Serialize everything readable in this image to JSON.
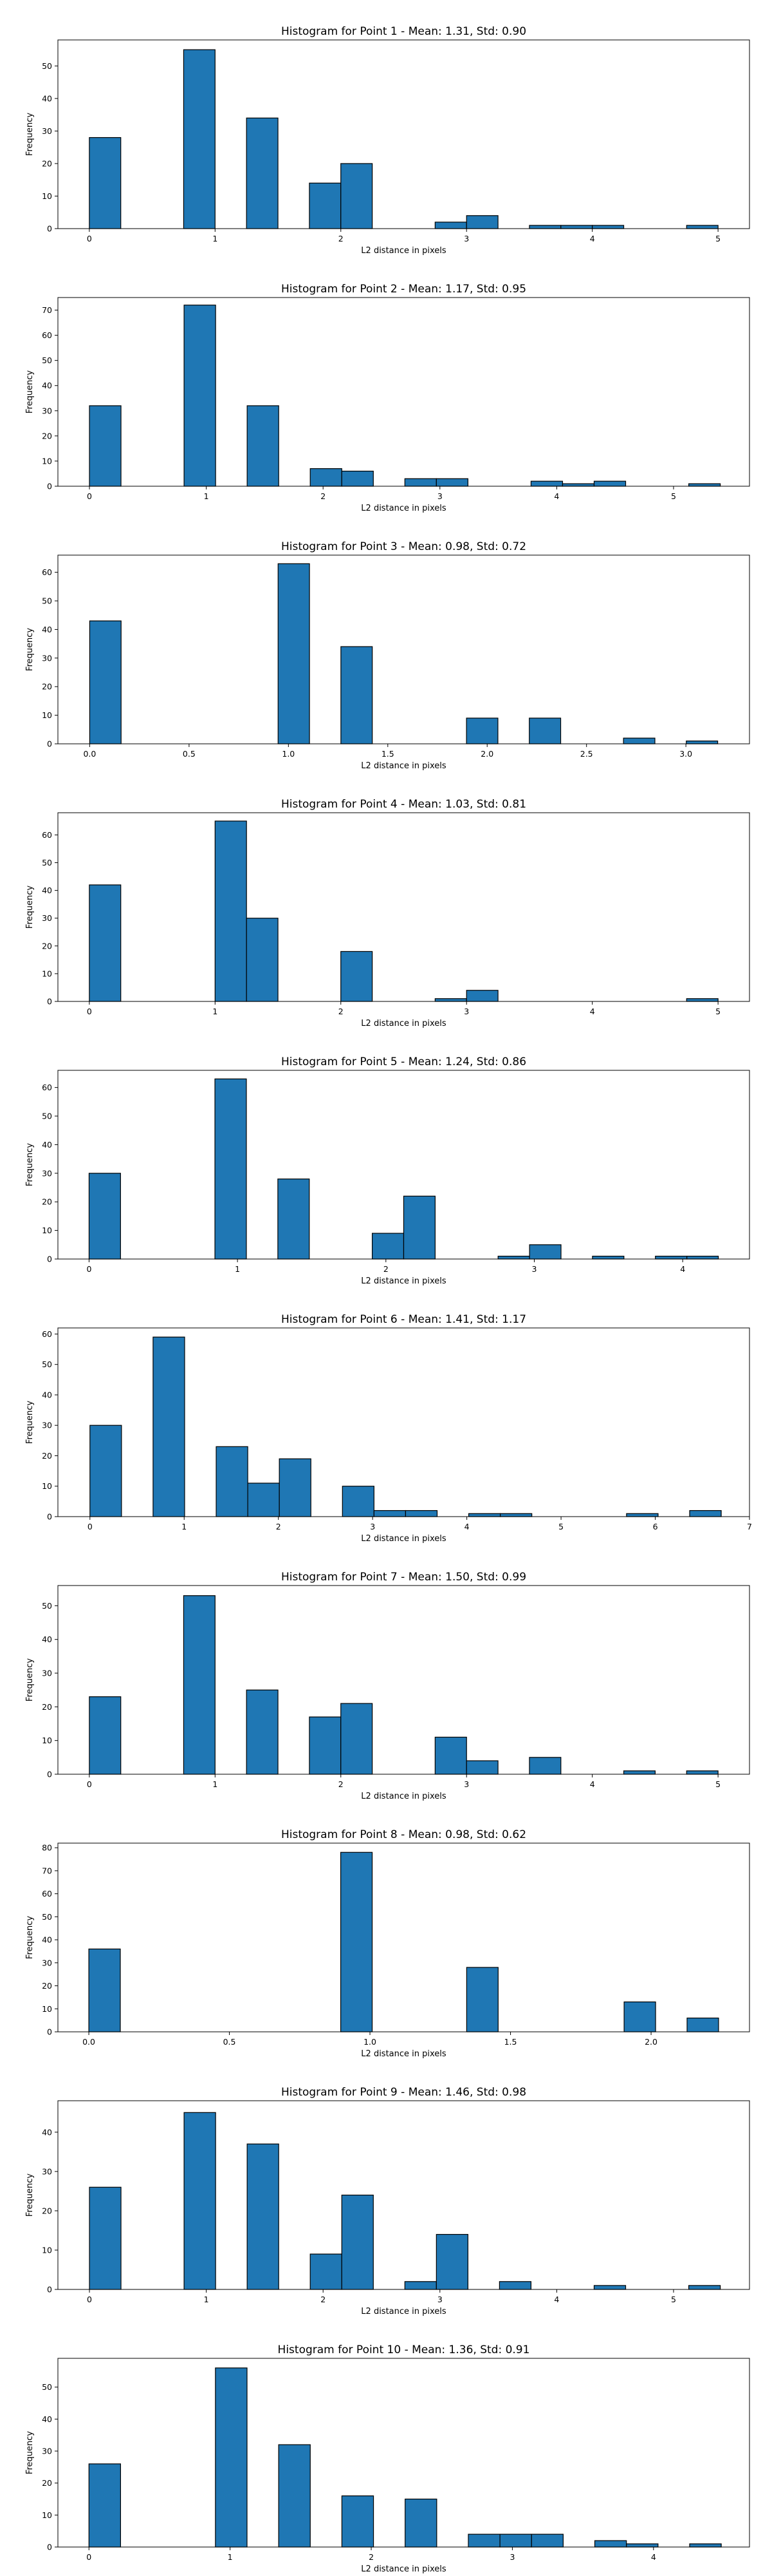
{
  "chart_data": [
    {
      "type": "bar",
      "title": "Histogram for Point 1 - Mean: 1.31, Std: 0.90",
      "xlabel": "L2 distance in pixels",
      "ylabel": "Frequency",
      "xlim": [
        -0.25,
        5.25
      ],
      "ylim": [
        0,
        58
      ],
      "xticks": [
        0,
        1,
        2,
        3,
        4,
        5
      ],
      "xtick_labels": [
        "0",
        "1",
        "2",
        "3",
        "4",
        "5"
      ],
      "yticks": [
        0,
        10,
        20,
        30,
        40,
        50
      ],
      "bin_width": 0.25,
      "bins": [
        {
          "x": 0.0,
          "count": 28
        },
        {
          "x": 0.75,
          "count": 55
        },
        {
          "x": 1.25,
          "count": 34
        },
        {
          "x": 1.75,
          "count": 14
        },
        {
          "x": 2.0,
          "count": 20
        },
        {
          "x": 2.75,
          "count": 2
        },
        {
          "x": 3.0,
          "count": 4
        },
        {
          "x": 3.5,
          "count": 1
        },
        {
          "x": 3.75,
          "count": 1
        },
        {
          "x": 4.0,
          "count": 1
        },
        {
          "x": 4.75,
          "count": 1
        }
      ]
    },
    {
      "type": "bar",
      "title": "Histogram for Point 2 - Mean: 1.17, Std: 0.95",
      "xlabel": "L2 distance in pixels",
      "ylabel": "Frequency",
      "xlim": [
        -0.27,
        5.65
      ],
      "ylim": [
        0,
        75
      ],
      "xticks": [
        0,
        1,
        2,
        3,
        4,
        5
      ],
      "xtick_labels": [
        "0",
        "1",
        "2",
        "3",
        "4",
        "5"
      ],
      "yticks": [
        0,
        10,
        20,
        30,
        40,
        50,
        60,
        70
      ],
      "bin_width": 0.27,
      "bins": [
        {
          "x": 0.0,
          "count": 32
        },
        {
          "x": 0.81,
          "count": 72
        },
        {
          "x": 1.35,
          "count": 32
        },
        {
          "x": 1.89,
          "count": 7
        },
        {
          "x": 2.16,
          "count": 6
        },
        {
          "x": 2.7,
          "count": 3
        },
        {
          "x": 2.97,
          "count": 3
        },
        {
          "x": 3.78,
          "count": 2
        },
        {
          "x": 4.05,
          "count": 1
        },
        {
          "x": 4.32,
          "count": 2
        },
        {
          "x": 5.13,
          "count": 1
        }
      ]
    },
    {
      "type": "bar",
      "title": "Histogram for Point 3 - Mean: 0.98, Std: 0.72",
      "xlabel": "L2 distance in pixels",
      "ylabel": "Frequency",
      "xlim": [
        -0.16,
        3.32
      ],
      "ylim": [
        0,
        66
      ],
      "xticks": [
        0.0,
        0.5,
        1.0,
        1.5,
        2.0,
        2.5,
        3.0
      ],
      "xtick_labels": [
        "0.0",
        "0.5",
        "1.0",
        "1.5",
        "2.0",
        "2.5",
        "3.0"
      ],
      "yticks": [
        0,
        10,
        20,
        30,
        40,
        50,
        60
      ],
      "bin_width": 0.158,
      "bins": [
        {
          "x": 0.0,
          "count": 43
        },
        {
          "x": 0.948,
          "count": 63
        },
        {
          "x": 1.264,
          "count": 34
        },
        {
          "x": 1.896,
          "count": 9
        },
        {
          "x": 2.212,
          "count": 9
        },
        {
          "x": 2.686,
          "count": 2
        },
        {
          "x": 3.002,
          "count": 1
        }
      ]
    },
    {
      "type": "bar",
      "title": "Histogram for Point 4 - Mean: 1.03, Std: 0.81",
      "xlabel": "L2 distance in pixels",
      "ylabel": "Frequency",
      "xlim": [
        -0.25,
        5.25
      ],
      "ylim": [
        0,
        68
      ],
      "xticks": [
        0,
        1,
        2,
        3,
        4,
        5
      ],
      "xtick_labels": [
        "0",
        "1",
        "2",
        "3",
        "4",
        "5"
      ],
      "yticks": [
        0,
        10,
        20,
        30,
        40,
        50,
        60
      ],
      "bin_width": 0.25,
      "bins": [
        {
          "x": 0.0,
          "count": 42
        },
        {
          "x": 1.0,
          "count": 65
        },
        {
          "x": 1.25,
          "count": 30
        },
        {
          "x": 2.0,
          "count": 18
        },
        {
          "x": 2.75,
          "count": 1
        },
        {
          "x": 3.0,
          "count": 4
        },
        {
          "x": 4.75,
          "count": 1
        }
      ]
    },
    {
      "type": "bar",
      "title": "Histogram for Point 5 - Mean: 1.24, Std: 0.86",
      "xlabel": "L2 distance in pixels",
      "ylabel": "Frequency",
      "xlim": [
        -0.21,
        4.45
      ],
      "ylim": [
        0,
        66
      ],
      "xticks": [
        0,
        1,
        2,
        3,
        4
      ],
      "xtick_labels": [
        "0",
        "1",
        "2",
        "3",
        "4"
      ],
      "yticks": [
        0,
        10,
        20,
        30,
        40,
        50,
        60
      ],
      "bin_width": 0.212,
      "bins": [
        {
          "x": 0.0,
          "count": 30
        },
        {
          "x": 0.848,
          "count": 63
        },
        {
          "x": 1.272,
          "count": 28
        },
        {
          "x": 1.908,
          "count": 9
        },
        {
          "x": 2.12,
          "count": 22
        },
        {
          "x": 2.756,
          "count": 1
        },
        {
          "x": 2.968,
          "count": 5
        },
        {
          "x": 3.392,
          "count": 1
        },
        {
          "x": 3.816,
          "count": 1
        },
        {
          "x": 4.028,
          "count": 1
        }
      ]
    },
    {
      "type": "bar",
      "title": "Histogram for Point 6 - Mean: 1.41, Std: 1.17",
      "xlabel": "L2 distance in pixels",
      "ylabel": "Frequency",
      "xlim": [
        -0.34,
        7.0
      ],
      "ylim": [
        0,
        62
      ],
      "xticks": [
        0,
        1,
        2,
        3,
        4,
        5,
        6,
        7
      ],
      "xtick_labels": [
        "0",
        "1",
        "2",
        "3",
        "4",
        "5",
        "6",
        "7"
      ],
      "yticks": [
        0,
        10,
        20,
        30,
        40,
        50,
        60
      ],
      "bin_width": 0.335,
      "bins": [
        {
          "x": 0.0,
          "count": 30
        },
        {
          "x": 0.67,
          "count": 59
        },
        {
          "x": 1.34,
          "count": 23
        },
        {
          "x": 1.675,
          "count": 11
        },
        {
          "x": 2.01,
          "count": 19
        },
        {
          "x": 2.68,
          "count": 10
        },
        {
          "x": 3.015,
          "count": 2
        },
        {
          "x": 3.35,
          "count": 2
        },
        {
          "x": 4.02,
          "count": 1
        },
        {
          "x": 4.355,
          "count": 1
        },
        {
          "x": 5.695,
          "count": 1
        },
        {
          "x": 6.365,
          "count": 2
        }
      ]
    },
    {
      "type": "bar",
      "title": "Histogram for Point 7 - Mean: 1.50, Std: 0.99",
      "xlabel": "L2 distance in pixels",
      "ylabel": "Frequency",
      "xlim": [
        -0.25,
        5.25
      ],
      "ylim": [
        0,
        56
      ],
      "xticks": [
        0,
        1,
        2,
        3,
        4,
        5
      ],
      "xtick_labels": [
        "0",
        "1",
        "2",
        "3",
        "4",
        "5"
      ],
      "yticks": [
        0,
        10,
        20,
        30,
        40,
        50
      ],
      "bin_width": 0.25,
      "bins": [
        {
          "x": 0.0,
          "count": 23
        },
        {
          "x": 0.75,
          "count": 53
        },
        {
          "x": 1.25,
          "count": 25
        },
        {
          "x": 1.75,
          "count": 17
        },
        {
          "x": 2.0,
          "count": 21
        },
        {
          "x": 2.75,
          "count": 11
        },
        {
          "x": 3.0,
          "count": 4
        },
        {
          "x": 3.5,
          "count": 5
        },
        {
          "x": 4.25,
          "count": 1
        },
        {
          "x": 4.75,
          "count": 1
        }
      ]
    },
    {
      "type": "bar",
      "title": "Histogram for Point 8 - Mean: 0.98, Std: 0.62",
      "xlabel": "L2 distance in pixels",
      "ylabel": "Frequency",
      "xlim": [
        -0.11,
        2.35
      ],
      "ylim": [
        0,
        82
      ],
      "xticks": [
        0.0,
        0.5,
        1.0,
        1.5,
        2.0
      ],
      "xtick_labels": [
        "0.0",
        "0.5",
        "1.0",
        "1.5",
        "2.0"
      ],
      "yticks": [
        0,
        10,
        20,
        30,
        40,
        50,
        60,
        70,
        80
      ],
      "bin_width": 0.112,
      "bins": [
        {
          "x": 0.0,
          "count": 36
        },
        {
          "x": 0.896,
          "count": 78
        },
        {
          "x": 1.344,
          "count": 28
        },
        {
          "x": 1.904,
          "count": 13
        },
        {
          "x": 2.128,
          "count": 6
        }
      ]
    },
    {
      "type": "bar",
      "title": "Histogram for Point 9 - Mean: 1.46, Std: 0.98",
      "xlabel": "L2 distance in pixels",
      "ylabel": "Frequency",
      "xlim": [
        -0.27,
        5.65
      ],
      "ylim": [
        0,
        48
      ],
      "xticks": [
        0,
        1,
        2,
        3,
        4,
        5
      ],
      "xtick_labels": [
        "0",
        "1",
        "2",
        "3",
        "4",
        "5"
      ],
      "yticks": [
        0,
        10,
        20,
        30,
        40
      ],
      "bin_width": 0.27,
      "bins": [
        {
          "x": 0.0,
          "count": 26
        },
        {
          "x": 0.81,
          "count": 45
        },
        {
          "x": 1.35,
          "count": 37
        },
        {
          "x": 1.89,
          "count": 9
        },
        {
          "x": 2.16,
          "count": 24
        },
        {
          "x": 2.7,
          "count": 2
        },
        {
          "x": 2.97,
          "count": 14
        },
        {
          "x": 3.51,
          "count": 2
        },
        {
          "x": 4.32,
          "count": 1
        },
        {
          "x": 5.13,
          "count": 1
        }
      ]
    },
    {
      "type": "bar",
      "title": "Histogram for Point 10 - Mean: 1.36, Std: 0.91",
      "xlabel": "L2 distance in pixels",
      "ylabel": "Frequency",
      "xlim": [
        -0.22,
        4.68
      ],
      "ylim": [
        0,
        59
      ],
      "xticks": [
        0,
        1,
        2,
        3,
        4
      ],
      "xtick_labels": [
        "0",
        "1",
        "2",
        "3",
        "4"
      ],
      "yticks": [
        0,
        10,
        20,
        30,
        40,
        50
      ],
      "bin_width": 0.224,
      "bins": [
        {
          "x": 0.0,
          "count": 26
        },
        {
          "x": 0.896,
          "count": 56
        },
        {
          "x": 1.344,
          "count": 32
        },
        {
          "x": 1.792,
          "count": 16
        },
        {
          "x": 2.24,
          "count": 15
        },
        {
          "x": 2.688,
          "count": 4
        },
        {
          "x": 2.912,
          "count": 4
        },
        {
          "x": 3.136,
          "count": 4
        },
        {
          "x": 3.584,
          "count": 2
        },
        {
          "x": 3.808,
          "count": 1
        },
        {
          "x": 4.256,
          "count": 1
        }
      ]
    }
  ]
}
